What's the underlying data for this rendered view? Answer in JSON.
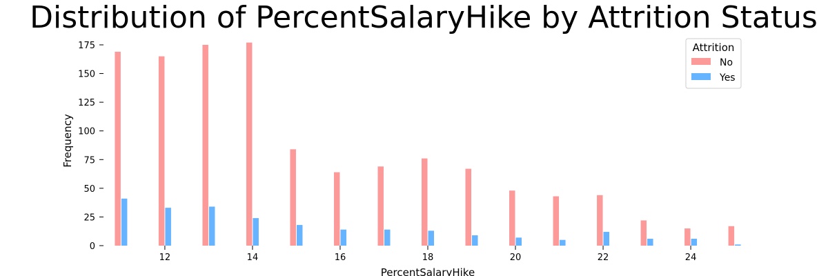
{
  "chart_data": {
    "type": "bar",
    "title": "Distribution of PercentSalaryHike by Attrition Status",
    "xlabel": "PercentSalaryHike",
    "ylabel": "Frequency",
    "x": [
      11,
      12,
      13,
      14,
      15,
      16,
      17,
      18,
      19,
      20,
      21,
      22,
      23,
      24,
      25
    ],
    "xlim": [
      10.6,
      25.4
    ],
    "ylim": [
      0,
      178
    ],
    "xticks": [
      12,
      14,
      16,
      18,
      20,
      22,
      24
    ],
    "yticks": [
      0,
      25,
      50,
      75,
      100,
      125,
      150,
      175
    ],
    "grid": false,
    "legend": {
      "title": "Attrition",
      "placement": "top-right"
    },
    "series": [
      {
        "name": "No",
        "color": "#fc9a9a",
        "values": [
          169,
          165,
          175,
          177,
          84,
          64,
          69,
          76,
          67,
          48,
          43,
          44,
          22,
          15,
          17
        ]
      },
      {
        "name": "Yes",
        "color": "#66b3ff",
        "values": [
          41,
          33,
          34,
          24,
          18,
          14,
          14,
          13,
          9,
          7,
          5,
          12,
          6,
          6,
          1
        ]
      }
    ]
  }
}
